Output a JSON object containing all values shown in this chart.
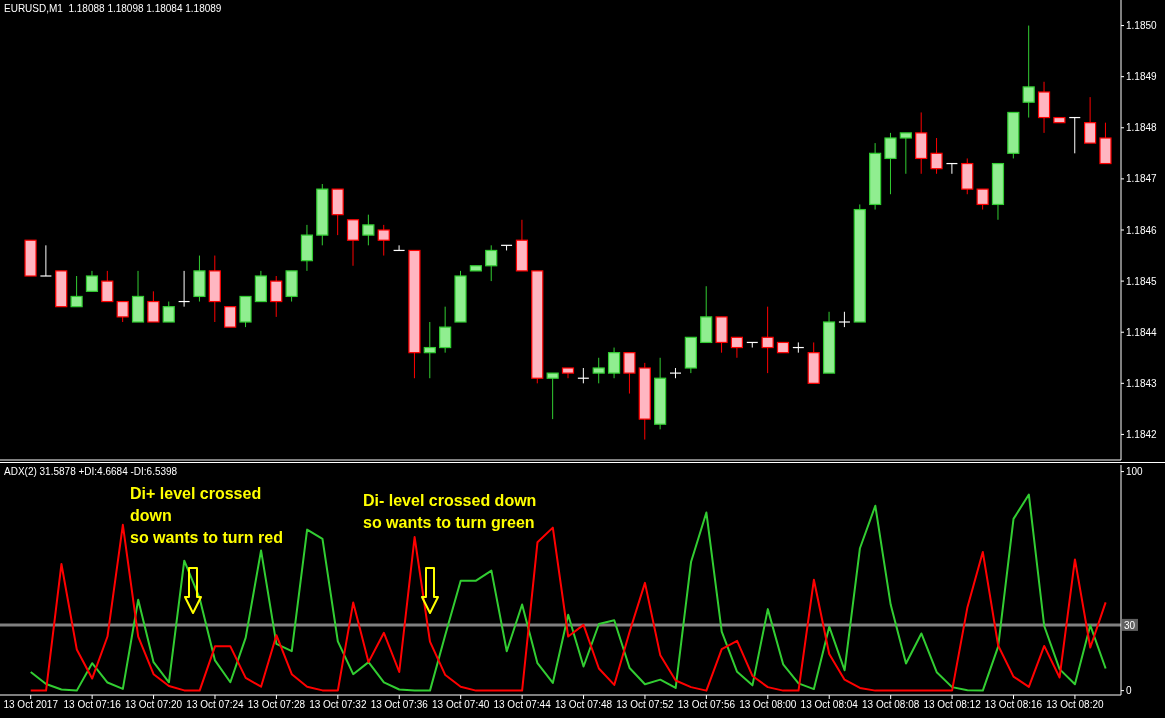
{
  "chart_data": [
    {
      "type": "candlestick",
      "title": "EURUSD,M1  1.18088 1.18098 1.18084 1.18089",
      "x": [
        "2017-10-13T07:12",
        "2017-10-13T07:13",
        "2017-10-13T07:14",
        "2017-10-13T07:15",
        "2017-10-13T07:16",
        "2017-10-13T07:17",
        "2017-10-13T07:18",
        "2017-10-13T07:19",
        "2017-10-13T07:20",
        "2017-10-13T07:21",
        "2017-10-13T07:22",
        "2017-10-13T07:23",
        "2017-10-13T07:24",
        "2017-10-13T07:25",
        "2017-10-13T07:26",
        "2017-10-13T07:27",
        "2017-10-13T07:28",
        "2017-10-13T07:29",
        "2017-10-13T07:30",
        "2017-10-13T07:31",
        "2017-10-13T07:32",
        "2017-10-13T07:33",
        "2017-10-13T07:34",
        "2017-10-13T07:35",
        "2017-10-13T07:36",
        "2017-10-13T07:37",
        "2017-10-13T07:38",
        "2017-10-13T07:39",
        "2017-10-13T07:40",
        "2017-10-13T07:41",
        "2017-10-13T07:42",
        "2017-10-13T07:43",
        "2017-10-13T07:44",
        "2017-10-13T07:45",
        "2017-10-13T07:46",
        "2017-10-13T07:47",
        "2017-10-13T07:48",
        "2017-10-13T07:49",
        "2017-10-13T07:50",
        "2017-10-13T07:51",
        "2017-10-13T07:52",
        "2017-10-13T07:53",
        "2017-10-13T07:54",
        "2017-10-13T07:55",
        "2017-10-13T07:56",
        "2017-10-13T07:57",
        "2017-10-13T07:58",
        "2017-10-13T07:59",
        "2017-10-13T08:00",
        "2017-10-13T08:01",
        "2017-10-13T08:02",
        "2017-10-13T08:03",
        "2017-10-13T08:04",
        "2017-10-13T08:05",
        "2017-10-13T08:06",
        "2017-10-13T08:07",
        "2017-10-13T08:08",
        "2017-10-13T08:09",
        "2017-10-13T08:10",
        "2017-10-13T08:11",
        "2017-10-13T08:12",
        "2017-10-13T08:13",
        "2017-10-13T08:14",
        "2017-10-13T08:15",
        "2017-10-13T08:16",
        "2017-10-13T08:17",
        "2017-10-13T08:18",
        "2017-10-13T08:19",
        "2017-10-13T08:20",
        "2017-10-13T08:21",
        "2017-10-13T08:22"
      ],
      "ohlc": [
        [
          1.18458,
          1.18458,
          1.18451,
          1.18451
        ],
        [
          1.18451,
          1.18457,
          1.18451,
          1.18451
        ],
        [
          1.18452,
          1.18452,
          1.18445,
          1.18445
        ],
        [
          1.18445,
          1.18451,
          1.18445,
          1.18447
        ],
        [
          1.18448,
          1.18452,
          1.18448,
          1.18451
        ],
        [
          1.1845,
          1.18452,
          1.18446,
          1.18446
        ],
        [
          1.18446,
          1.18446,
          1.18442,
          1.18443
        ],
        [
          1.18442,
          1.18452,
          1.18442,
          1.18447
        ],
        [
          1.18446,
          1.18448,
          1.18442,
          1.18442
        ],
        [
          1.18442,
          1.18446,
          1.18442,
          1.18445
        ],
        [
          1.18446,
          1.18452,
          1.18445,
          1.18446
        ],
        [
          1.18447,
          1.18455,
          1.18446,
          1.18452
        ],
        [
          1.18452,
          1.18455,
          1.18442,
          1.18446
        ],
        [
          1.18445,
          1.18445,
          1.18441,
          1.18441
        ],
        [
          1.18442,
          1.18447,
          1.18441,
          1.18447
        ],
        [
          1.18446,
          1.18452,
          1.18446,
          1.18451
        ],
        [
          1.1845,
          1.18451,
          1.18443,
          1.18446
        ],
        [
          1.18447,
          1.18452,
          1.18446,
          1.18452
        ],
        [
          1.18454,
          1.18461,
          1.18452,
          1.18459
        ],
        [
          1.18459,
          1.18469,
          1.18457,
          1.18468
        ],
        [
          1.18468,
          1.18468,
          1.18459,
          1.18463
        ],
        [
          1.18462,
          1.18462,
          1.18453,
          1.18458
        ],
        [
          1.18459,
          1.18463,
          1.18457,
          1.18461
        ],
        [
          1.1846,
          1.18461,
          1.18455,
          1.18458
        ],
        [
          1.18456,
          1.18457,
          1.18456,
          1.18456
        ],
        [
          1.18456,
          1.18456,
          1.18431,
          1.18436
        ],
        [
          1.18436,
          1.18442,
          1.18431,
          1.18437
        ],
        [
          1.18437,
          1.18445,
          1.18436,
          1.18441
        ],
        [
          1.18442,
          1.18452,
          1.18442,
          1.18451
        ],
        [
          1.18452,
          1.18453,
          1.18452,
          1.18453
        ],
        [
          1.18453,
          1.18457,
          1.1845,
          1.18456
        ],
        [
          1.18457,
          1.18457,
          1.18456,
          1.18457
        ],
        [
          1.18458,
          1.18462,
          1.18452,
          1.18452
        ],
        [
          1.18452,
          1.18452,
          1.1843,
          1.18431
        ],
        [
          1.18431,
          1.18432,
          1.18423,
          1.18432
        ],
        [
          1.18433,
          1.18433,
          1.18431,
          1.18432
        ],
        [
          1.18431,
          1.18433,
          1.1843,
          1.18431
        ],
        [
          1.18432,
          1.18435,
          1.1843,
          1.18433
        ],
        [
          1.18432,
          1.18437,
          1.18431,
          1.18436
        ],
        [
          1.18436,
          1.18436,
          1.18428,
          1.18432
        ],
        [
          1.18433,
          1.18434,
          1.18419,
          1.18423
        ],
        [
          1.18422,
          1.18435,
          1.18421,
          1.18431
        ],
        [
          1.18432,
          1.18433,
          1.18431,
          1.18432
        ],
        [
          1.18433,
          1.18439,
          1.18432,
          1.18439
        ],
        [
          1.18438,
          1.18449,
          1.18438,
          1.18443
        ],
        [
          1.18443,
          1.18443,
          1.18436,
          1.18438
        ],
        [
          1.18439,
          1.18439,
          1.18435,
          1.18437
        ],
        [
          1.18438,
          1.18438,
          1.18437,
          1.18438
        ],
        [
          1.18439,
          1.18445,
          1.18432,
          1.18437
        ],
        [
          1.18438,
          1.18438,
          1.18436,
          1.18436
        ],
        [
          1.18437,
          1.18438,
          1.18436,
          1.18437
        ],
        [
          1.18436,
          1.18438,
          1.1843,
          1.1843
        ],
        [
          1.18432,
          1.18444,
          1.18432,
          1.18442
        ],
        [
          1.18442,
          1.18444,
          1.18441,
          1.18442
        ],
        [
          1.18442,
          1.18465,
          1.18442,
          1.18464
        ],
        [
          1.18465,
          1.18477,
          1.18464,
          1.18475
        ],
        [
          1.18474,
          1.18479,
          1.18467,
          1.18478
        ],
        [
          1.18478,
          1.18479,
          1.18471,
          1.18479
        ],
        [
          1.18479,
          1.18483,
          1.18471,
          1.18474
        ],
        [
          1.18475,
          1.18478,
          1.18471,
          1.18472
        ],
        [
          1.18473,
          1.18473,
          1.18471,
          1.18473
        ],
        [
          1.18473,
          1.18474,
          1.18467,
          1.18468
        ],
        [
          1.18468,
          1.18468,
          1.18464,
          1.18465
        ],
        [
          1.18465,
          1.18473,
          1.18462,
          1.18473
        ],
        [
          1.18475,
          1.18483,
          1.18474,
          1.18483
        ],
        [
          1.18485,
          1.185,
          1.18482,
          1.18488
        ],
        [
          1.18487,
          1.18489,
          1.18479,
          1.18482
        ],
        [
          1.18482,
          1.18482,
          1.18481,
          1.18481
        ],
        [
          1.18482,
          1.18482,
          1.18475,
          1.18482
        ],
        [
          1.18481,
          1.18486,
          1.18477,
          1.18477
        ],
        [
          1.18478,
          1.18481,
          1.18473,
          1.18473
        ]
      ],
      "colors": [
        "#ffb6c1",
        "#ffffff",
        "#ffb6c1",
        "#90ee90",
        "#90ee90",
        "#ffb6c1",
        "#ffb6c1",
        "#90ee90",
        "#ffb6c1",
        "#90ee90",
        "#ffffff",
        "#90ee90",
        "#ffb6c1",
        "#ffb6c1",
        "#90ee90",
        "#90ee90",
        "#ffb6c1",
        "#90ee90",
        "#90ee90",
        "#90ee90",
        "#ffb6c1",
        "#ffb6c1",
        "#90ee90",
        "#ffb6c1",
        "#ffffff",
        "#ffb6c1",
        "#90ee90",
        "#90ee90",
        "#90ee90",
        "#90ee90",
        "#90ee90",
        "#ffffff",
        "#ffb6c1",
        "#ffb6c1",
        "#90ee90",
        "#ffb6c1",
        "#ffffff",
        "#90ee90",
        "#90ee90",
        "#ffb6c1",
        "#ffb6c1",
        "#90ee90",
        "#ffffff",
        "#90ee90",
        "#90ee90",
        "#ffb6c1",
        "#ffb6c1",
        "#ffffff",
        "#ffb6c1",
        "#ffb6c1",
        "#ffffff",
        "#ffb6c1",
        "#90ee90",
        "#ffffff",
        "#90ee90",
        "#90ee90",
        "#90ee90",
        "#90ee90",
        "#ffb6c1",
        "#ffb6c1",
        "#ffffff",
        "#ffb6c1",
        "#ffb6c1",
        "#90ee90",
        "#90ee90",
        "#90ee90",
        "#ffb6c1",
        "#ffb6c1",
        "#ffffff",
        "#ffb6c1",
        "#ffb6c1"
      ],
      "xlim": [
        "2017-10-13T07:10",
        "2017-10-13T08:23"
      ],
      "ylim": [
        1.18415,
        1.18505
      ],
      "yticks": [
        {
          "value": 1.185,
          "label": "1.1850"
        },
        1.1849,
        1.1848,
        1.1847,
        1.1846,
        1.1845,
        1.1844,
        1.1843,
        1.1842
      ],
      "tick_labels": "y"
    },
    {
      "type": "line",
      "title": "ADX(2) 31.5878 +DI:4.6684 -DI:6.5398",
      "x": [
        "2017-10-13T07:12",
        "2017-10-13T07:13",
        "2017-10-13T07:14",
        "2017-10-13T07:15",
        "2017-10-13T07:16",
        "2017-10-13T07:17",
        "2017-10-13T07:18",
        "2017-10-13T07:19",
        "2017-10-13T07:20",
        "2017-10-13T07:21",
        "2017-10-13T07:22",
        "2017-10-13T07:23",
        "2017-10-13T07:24",
        "2017-10-13T07:25",
        "2017-10-13T07:26",
        "2017-10-13T07:27",
        "2017-10-13T07:28",
        "2017-10-13T07:29",
        "2017-10-13T07:30",
        "2017-10-13T07:31",
        "2017-10-13T07:32",
        "2017-10-13T07:33",
        "2017-10-13T07:34",
        "2017-10-13T07:35",
        "2017-10-13T07:36",
        "2017-10-13T07:37",
        "2017-10-13T07:38",
        "2017-10-13T07:39",
        "2017-10-13T07:40",
        "2017-10-13T07:41",
        "2017-10-13T07:42",
        "2017-10-13T07:43",
        "2017-10-13T07:44",
        "2017-10-13T07:45",
        "2017-10-13T07:46",
        "2017-10-13T07:47",
        "2017-10-13T07:48",
        "2017-10-13T07:49",
        "2017-10-13T07:50",
        "2017-10-13T07:51",
        "2017-10-13T07:52",
        "2017-10-13T07:53",
        "2017-10-13T07:54",
        "2017-10-13T07:55",
        "2017-10-13T07:56",
        "2017-10-13T07:57",
        "2017-10-13T07:58",
        "2017-10-13T07:59",
        "2017-10-13T08:00",
        "2017-10-13T08:01",
        "2017-10-13T08:02",
        "2017-10-13T08:03",
        "2017-10-13T08:04",
        "2017-10-13T08:05",
        "2017-10-13T08:06",
        "2017-10-13T08:07",
        "2017-10-13T08:08",
        "2017-10-13T08:09",
        "2017-10-13T08:10",
        "2017-10-13T08:11",
        "2017-10-13T08:12",
        "2017-10-13T08:13",
        "2017-10-13T08:14",
        "2017-10-13T08:15",
        "2017-10-13T08:16",
        "2017-10-13T08:17",
        "2017-10-13T08:18",
        "2017-10-13T08:19",
        "2017-10-13T08:20",
        "2017-10-13T08:21",
        "2017-10-13T08:22"
      ],
      "series": [
        {
          "color": "#32cd32",
          "values": [
            8.5,
            3,
            0.5,
            0,
            12.5,
            3.7,
            0.8,
            41.5,
            13,
            3.8,
            59.3,
            42.2,
            13.8,
            3.8,
            24.2,
            64,
            21.3,
            18,
            73.5,
            69.3,
            22.5,
            7.5,
            13,
            3.8,
            0.5,
            0,
            0,
            25.5,
            50.2,
            50.2,
            54.8,
            18,
            39.3,
            12.5,
            3.5,
            34.6,
            11,
            30.4,
            32.1,
            10.3,
            2.9,
            5,
            1.2,
            58.7,
            81.3,
            26.9,
            8.6,
            2.4,
            37.2,
            12,
            3.3,
            0.7,
            29.2,
            9.3,
            65,
            84.4,
            39.3,
            12.4,
            26.1,
            8.4,
            1.6,
            0.2,
            0,
            20.1,
            78.4,
            89.5,
            29.5,
            9.8,
            2.9,
            29.8,
            10.1
          ]
        },
        {
          "color": "#ff0000",
          "values": [
            0,
            0,
            57.8,
            18.8,
            5.5,
            24.7,
            75.7,
            24.7,
            7.5,
            2.1,
            0.1,
            0,
            20.2,
            20.2,
            5.8,
            1.8,
            25.3,
            7.5,
            1.8,
            0.1,
            0,
            40.2,
            13,
            26.4,
            8.5,
            70.1,
            22.4,
            7.1,
            1.8,
            0,
            0,
            0,
            0,
            67.7,
            74.4,
            24.7,
            30,
            10.1,
            2.6,
            26.9,
            49.2,
            16.1,
            4.6,
            1.6,
            0,
            18.9,
            22.7,
            6.7,
            1.6,
            0,
            0,
            50.6,
            16.7,
            5,
            1.2,
            0,
            0,
            0,
            0,
            0,
            0,
            38.1,
            63.3,
            20.6,
            6.4,
            1.7,
            20.4,
            6,
            59.9,
            19.7,
            40.3
          ]
        }
      ],
      "marker": "none",
      "xlim": [
        "2017-10-13T07:10",
        "2017-10-13T08:23"
      ],
      "xticks": [
        {
          "value": "2017-10-13T07:12",
          "label": "13 Oct 2017"
        },
        {
          "value": "2017-10-13T07:16",
          "label": "13 Oct 07:16"
        },
        {
          "value": "2017-10-13T07:20",
          "label": "13 Oct 07:20"
        },
        {
          "value": "2017-10-13T07:24",
          "label": "13 Oct 07:24"
        },
        {
          "value": "2017-10-13T07:28",
          "label": "13 Oct 07:28"
        },
        {
          "value": "2017-10-13T07:32",
          "label": "13 Oct 07:32"
        },
        {
          "value": "2017-10-13T07:36",
          "label": "13 Oct 07:36"
        },
        {
          "value": "2017-10-13T07:40",
          "label": "13 Oct 07:40"
        },
        {
          "value": "2017-10-13T07:44",
          "label": "13 Oct 07:44"
        },
        {
          "value": "2017-10-13T07:48",
          "label": "13 Oct 07:48"
        },
        {
          "value": "2017-10-13T07:52",
          "label": "13 Oct 07:52"
        },
        {
          "value": "2017-10-13T07:56",
          "label": "13 Oct 07:56"
        },
        {
          "value": "2017-10-13T08:00",
          "label": "13 Oct 08:00"
        },
        {
          "value": "2017-10-13T08:04",
          "label": "13 Oct 08:04"
        },
        {
          "value": "2017-10-13T08:08",
          "label": "13 Oct 08:08"
        },
        {
          "value": "2017-10-13T08:12",
          "label": "13 Oct 08:12"
        },
        {
          "value": "2017-10-13T08:16",
          "label": "13 Oct 08:16"
        },
        {
          "value": "2017-10-13T08:20",
          "label": "13 Oct 08:20"
        }
      ],
      "ylim": [
        -2,
        103
      ],
      "yticks": [
        0,
        100
      ],
      "ref_lines": [
        {
          "axis": "y",
          "value": 30,
          "label": "30",
          "color": "#808080"
        }
      ],
      "annotations": [
        "Di+ level crossed\ndown\nso wants to turn red",
        "Di- level crossed down\nso wants to turn green"
      ]
    }
  ]
}
